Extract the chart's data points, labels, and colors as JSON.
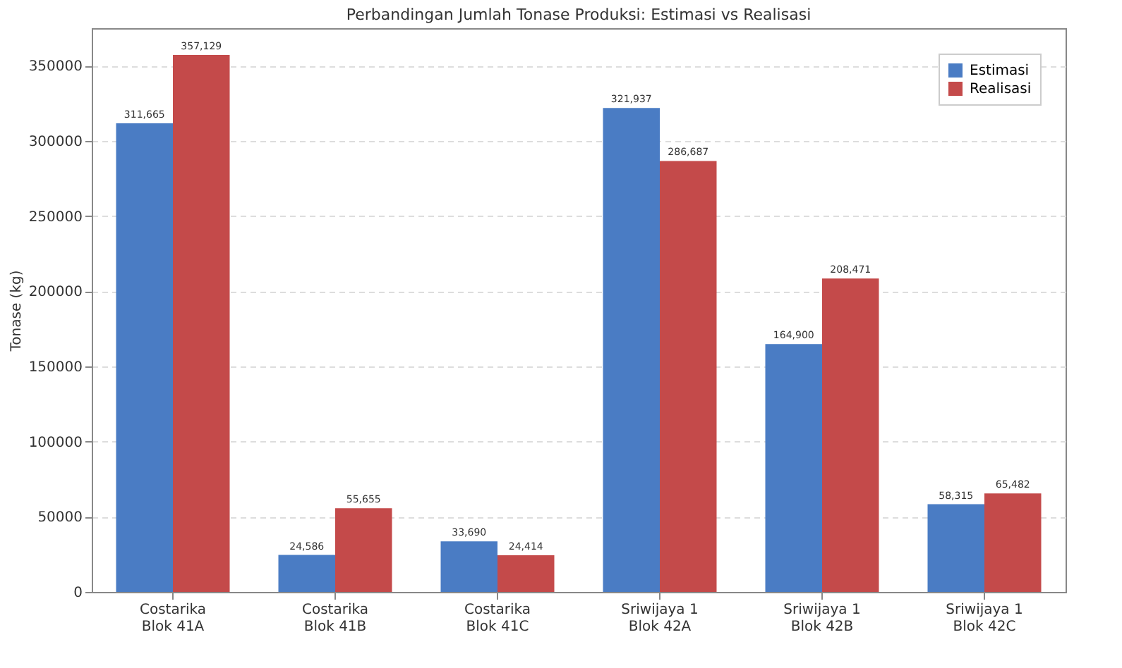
{
  "chart_data": {
    "type": "bar",
    "title": "Perbandingan Jumlah Tonase Produksi: Estimasi vs Realisasi",
    "ylabel": "Tonase (kg)",
    "categories": [
      "Costarika\nBlok 41A",
      "Costarika\nBlok 41B",
      "Costarika\nBlok 41C",
      "Sriwijaya 1\nBlok 42A",
      "Sriwijaya 1\nBlok 42B",
      "Sriwijaya 1\nBlok 42C"
    ],
    "series": [
      {
        "name": "Estimasi",
        "color": "#4a7cc4",
        "values": [
          311665,
          24586,
          33690,
          321937,
          164900,
          58315
        ],
        "value_labels": [
          "311,665",
          "24,586",
          "33,690",
          "321,937",
          "164,900",
          "58,315"
        ]
      },
      {
        "name": "Realisasi",
        "color": "#c44a4a",
        "values": [
          357129,
          55655,
          24414,
          286687,
          208471,
          65482
        ],
        "value_labels": [
          "357,129",
          "55,655",
          "24,414",
          "286,687",
          "208,471",
          "65,482"
        ]
      }
    ],
    "ylim": [
      0,
      375000
    ],
    "yticks": [
      0,
      50000,
      100000,
      150000,
      200000,
      250000,
      300000,
      350000
    ],
    "grid": "y",
    "legend": "top right"
  }
}
